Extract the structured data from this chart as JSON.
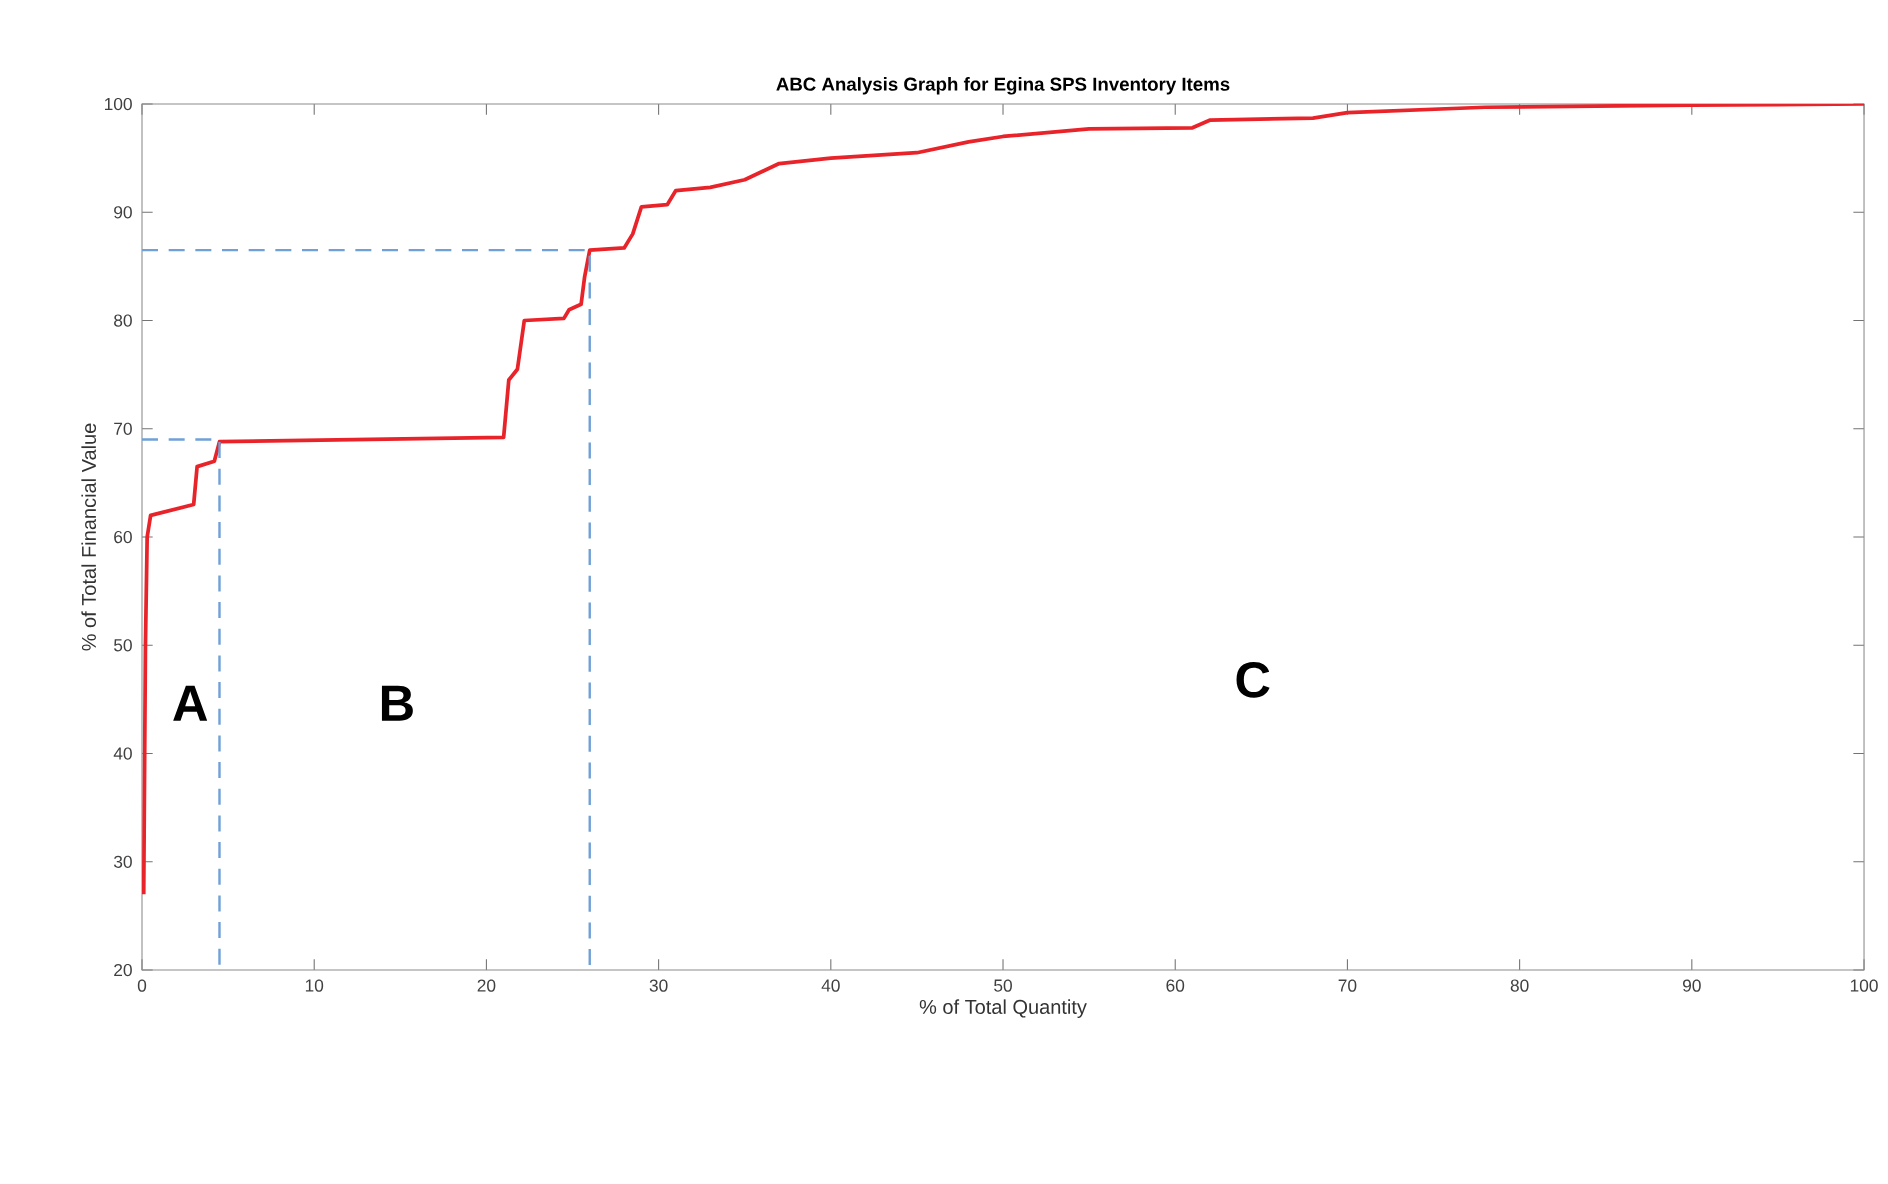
{
  "chart_data": {
    "type": "line",
    "title": "ABC Analysis Graph for Egina SPS Inventory Items",
    "xlabel": "% of Total Quantity",
    "ylabel": "% of Total Financial Value",
    "xlim": [
      0,
      100
    ],
    "ylim": [
      20,
      100
    ],
    "xticks": [
      0,
      10,
      20,
      30,
      40,
      50,
      60,
      70,
      80,
      90,
      100
    ],
    "yticks": [
      20,
      30,
      40,
      50,
      60,
      70,
      80,
      90,
      100
    ],
    "grid": false,
    "series": [
      {
        "color": "#e8242a",
        "line_style": "solid",
        "x": [
          0.1,
          0.2,
          0.3,
          0.5,
          3.0,
          3.2,
          4.2,
          4.5,
          21.0,
          21.3,
          21.8,
          22.2,
          24.5,
          24.8,
          25.5,
          25.7,
          26.0,
          28.0,
          28.5,
          29.0,
          30.5,
          31.0,
          33.0,
          35.0,
          37.0,
          40.0,
          45.0,
          48.0,
          50.0,
          55.0,
          61.0,
          62.0,
          68.0,
          70.0,
          78.0,
          90.0,
          100.0
        ],
        "values": [
          27,
          50,
          60,
          62,
          63,
          66.5,
          67,
          68.8,
          69.2,
          74.5,
          75.5,
          80,
          80.2,
          81,
          81.5,
          84,
          86.5,
          86.7,
          88,
          90.5,
          90.7,
          92,
          92.3,
          93,
          94.5,
          95,
          95.5,
          96.5,
          97,
          97.7,
          97.8,
          98.5,
          98.7,
          99.2,
          99.7,
          99.9,
          100
        ]
      },
      {
        "color": "#6fa0d8",
        "line_style": "dashed",
        "x": [
          0,
          4.5,
          4.5
        ],
        "values": [
          69,
          69,
          20
        ]
      },
      {
        "color": "#6fa0d8",
        "line_style": "dashed",
        "x": [
          0,
          26,
          26
        ],
        "values": [
          86.5,
          86.5,
          20
        ]
      }
    ],
    "annotations": [
      "A",
      "B",
      "C"
    ]
  }
}
